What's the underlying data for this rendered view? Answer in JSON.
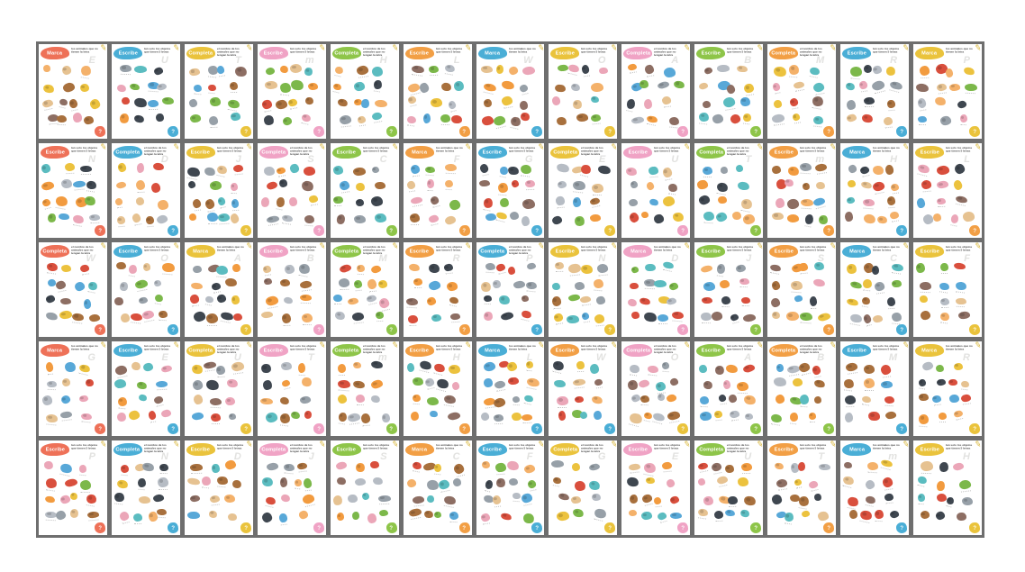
{
  "canvas": {
    "panel_bg": "#6e6e6e",
    "page_bg": "#ffffff"
  },
  "page_types": {
    "marca": {
      "label": "Marca",
      "instruction": "los animales que no tienen la letra"
    },
    "escribe": {
      "label": "Escribe",
      "instruction": "tan solo los objetos que tienen 5 letras"
    },
    "completa": {
      "label": "Completa",
      "instruction": "el nombre de los animales que no tengan la letra"
    }
  },
  "theme_colors": {
    "salmon": "#ee7158",
    "blue": "#4aaed6",
    "yellow": "#eac33c",
    "pink": "#f0a3c5",
    "green": "#8ec549",
    "orange": "#f29f45"
  },
  "question_mark": "?",
  "pencil_glyph": "✎",
  "trace_letters": [
    "E",
    "U",
    "T",
    "m",
    "H",
    "L",
    "W",
    "O",
    "A",
    "B",
    "M",
    "R",
    "P",
    "N",
    "D",
    "J",
    "S",
    "C",
    "F",
    "G"
  ],
  "illustration_palette": [
    "#b6bcc4",
    "#f29b3f",
    "#f4b16a",
    "#a8703d",
    "#3f4750",
    "#7cb84a",
    "#d94f3d",
    "#58a8d8",
    "#ecc23e",
    "#e6c291",
    "#eba6b8",
    "#5bbcc0",
    "#8d6e63",
    "#97a0a8"
  ],
  "grid": {
    "rows": 5,
    "cols": 13
  },
  "pages": [
    {
      "type": "marca",
      "color": "salmon"
    },
    {
      "type": "escribe",
      "color": "blue"
    },
    {
      "type": "completa",
      "color": "yellow"
    },
    {
      "type": "escribe",
      "color": "pink"
    },
    {
      "type": "completa",
      "color": "green"
    },
    {
      "type": "escribe",
      "color": "orange"
    },
    {
      "type": "marca",
      "color": "blue"
    },
    {
      "type": "escribe",
      "color": "yellow"
    },
    {
      "type": "completa",
      "color": "pink"
    },
    {
      "type": "escribe",
      "color": "green"
    },
    {
      "type": "completa",
      "color": "orange"
    },
    {
      "type": "escribe",
      "color": "blue"
    },
    {
      "type": "marca",
      "color": "yellow"
    },
    {
      "type": "escribe",
      "color": "salmon"
    },
    {
      "type": "completa",
      "color": "blue"
    },
    {
      "type": "escribe",
      "color": "yellow"
    },
    {
      "type": "completa",
      "color": "pink"
    },
    {
      "type": "escribe",
      "color": "green"
    },
    {
      "type": "marca",
      "color": "orange"
    },
    {
      "type": "escribe",
      "color": "blue"
    },
    {
      "type": "completa",
      "color": "yellow"
    },
    {
      "type": "escribe",
      "color": "pink"
    },
    {
      "type": "completa",
      "color": "green"
    },
    {
      "type": "escribe",
      "color": "orange"
    },
    {
      "type": "marca",
      "color": "blue"
    },
    {
      "type": "escribe",
      "color": "yellow",
      "circle": "orange"
    },
    {
      "type": "completa",
      "color": "salmon"
    },
    {
      "type": "escribe",
      "color": "blue"
    },
    {
      "type": "marca",
      "color": "yellow"
    },
    {
      "type": "escribe",
      "color": "pink"
    },
    {
      "type": "completa",
      "color": "green"
    },
    {
      "type": "escribe",
      "color": "orange"
    },
    {
      "type": "completa",
      "color": "blue"
    },
    {
      "type": "escribe",
      "color": "yellow"
    },
    {
      "type": "marca",
      "color": "pink"
    },
    {
      "type": "escribe",
      "color": "green"
    },
    {
      "type": "escribe",
      "color": "orange"
    },
    {
      "type": "marca",
      "color": "blue"
    },
    {
      "type": "escribe",
      "color": "yellow"
    },
    {
      "type": "marca",
      "color": "salmon"
    },
    {
      "type": "escribe",
      "color": "blue"
    },
    {
      "type": "completa",
      "color": "yellow"
    },
    {
      "type": "escribe",
      "color": "pink"
    },
    {
      "type": "completa",
      "color": "green"
    },
    {
      "type": "escribe",
      "color": "orange"
    },
    {
      "type": "marca",
      "color": "blue"
    },
    {
      "type": "escribe",
      "color": "orange",
      "circle": "blue"
    },
    {
      "type": "completa",
      "color": "pink",
      "circle": "yellow"
    },
    {
      "type": "escribe",
      "color": "green"
    },
    {
      "type": "completa",
      "color": "orange",
      "circle": "green"
    },
    {
      "type": "escribe",
      "color": "blue"
    },
    {
      "type": "marca",
      "color": "yellow"
    },
    {
      "type": "escribe",
      "color": "salmon"
    },
    {
      "type": "completa",
      "color": "blue"
    },
    {
      "type": "escribe",
      "color": "yellow"
    },
    {
      "type": "completa",
      "color": "pink"
    },
    {
      "type": "escribe",
      "color": "green"
    },
    {
      "type": "marca",
      "color": "orange"
    },
    {
      "type": "escribe",
      "color": "blue"
    },
    {
      "type": "completa",
      "color": "yellow"
    },
    {
      "type": "escribe",
      "color": "pink"
    },
    {
      "type": "completa",
      "color": "green"
    },
    {
      "type": "escribe",
      "color": "orange"
    },
    {
      "type": "marca",
      "color": "blue"
    },
    {
      "type": "escribe",
      "color": "yellow"
    }
  ]
}
